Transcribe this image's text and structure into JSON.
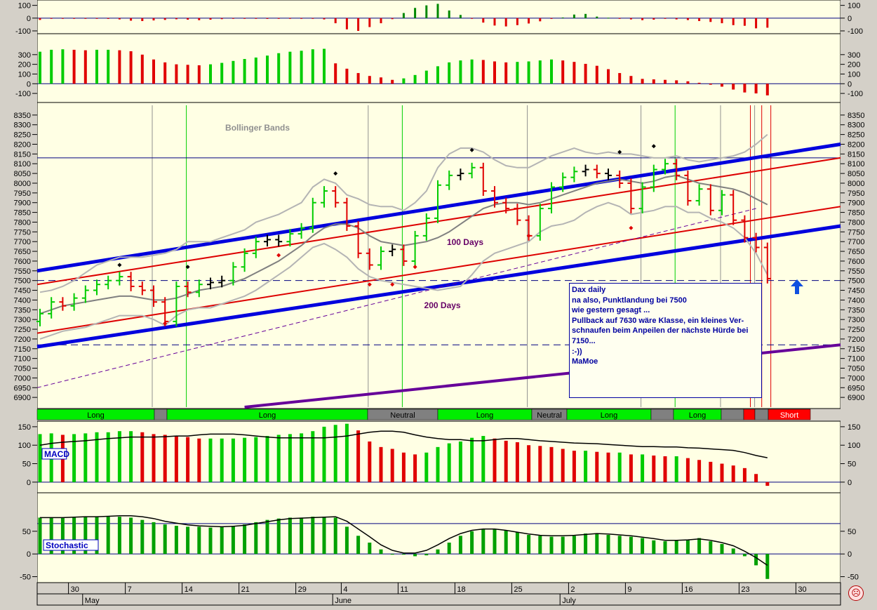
{
  "colors": {
    "background": "#ffffe4",
    "up": "#00cc00",
    "down": "#e00000",
    "neutral_bar": "#000000",
    "trend_blue": "#0000dd",
    "trend_red": "#dd0000",
    "trend_purple": "#660099",
    "bollinger": "#b4b4b4",
    "ma": "#808080",
    "grid": "#000080",
    "annotation": "#0000a0",
    "label_purple": "#660066",
    "long_band": "#00ee00",
    "neutral_band": "#808080",
    "short_band": "#ff0000"
  },
  "chart_data": [
    {
      "type": "bar",
      "name": "top_histogram_1",
      "ylim": [
        -100,
        120
      ],
      "y_ticks": [
        "100",
        "0",
        "-100"
      ],
      "values_by_day": [
        -14,
        -4,
        -4,
        -2,
        -5,
        -3,
        -6,
        -10,
        -20,
        -23,
        -18,
        -14,
        -9,
        -12,
        -16,
        -12,
        -8,
        -5,
        -4,
        -5,
        -6,
        -5,
        -5,
        -4,
        -5,
        -10,
        -40,
        -88,
        -100,
        -70,
        -40,
        -8,
        40,
        80,
        100,
        112,
        60,
        25,
        -5,
        -35,
        -58,
        -65,
        -55,
        -42,
        -25,
        -6,
        5,
        28,
        33,
        12,
        3,
        -3,
        -10,
        -16,
        -12,
        -5,
        -10,
        -15,
        -23,
        -30,
        -40,
        -55,
        -60,
        -80,
        -75
      ]
    },
    {
      "type": "bar",
      "name": "top_histogram_2",
      "ylim": [
        -150,
        400
      ],
      "y_ticks": [
        "300",
        "200",
        "100",
        "0",
        "-100"
      ],
      "values_by_day": [
        330,
        350,
        355,
        350,
        345,
        350,
        350,
        345,
        335,
        300,
        250,
        220,
        200,
        195,
        190,
        200,
        215,
        235,
        255,
        270,
        290,
        315,
        330,
        340,
        355,
        360,
        210,
        155,
        110,
        80,
        65,
        40,
        55,
        90,
        135,
        180,
        220,
        240,
        250,
        245,
        230,
        220,
        225,
        230,
        240,
        250,
        240,
        225,
        205,
        185,
        150,
        110,
        80,
        50,
        45,
        40,
        35,
        25,
        10,
        -10,
        -30,
        -60,
        -90,
        -100,
        -120
      ]
    },
    {
      "type": "line",
      "name": "price_chart",
      "ylim": [
        6850,
        8400
      ],
      "y_ticks": [
        "8350",
        "8300",
        "8250",
        "8200",
        "8150",
        "8100",
        "8050",
        "8000",
        "7950",
        "7900",
        "7850",
        "7800",
        "7750",
        "7700",
        "7650",
        "7600",
        "7550",
        "7500",
        "7450",
        "7400",
        "7350",
        "7300",
        "7250",
        "7200",
        "7150",
        "7100",
        "7050",
        "7000",
        "6950",
        "6900"
      ],
      "close_by_day": [
        7330,
        7390,
        7370,
        7410,
        7450,
        7480,
        7500,
        7520,
        7470,
        7450,
        7390,
        7290,
        7470,
        7440,
        7480,
        7490,
        7500,
        7570,
        7640,
        7700,
        7710,
        7700,
        7740,
        7770,
        7900,
        7960,
        7900,
        7780,
        7640,
        7580,
        7650,
        7660,
        7600,
        7730,
        7820,
        7990,
        8040,
        8050,
        8080,
        7960,
        7900,
        7870,
        7810,
        7730,
        7870,
        7980,
        8030,
        8060,
        8070,
        8050,
        8040,
        8000,
        7870,
        7980,
        8070,
        8100,
        8040,
        7910,
        7970,
        7860,
        7940,
        7810,
        7720,
        7670,
        7510
      ],
      "bollinger_upper_by_day": [
        7440,
        7450,
        7470,
        7500,
        7540,
        7580,
        7600,
        7620,
        7620,
        7620,
        7630,
        7640,
        7660,
        7700,
        7700,
        7700,
        7720,
        7740,
        7760,
        7800,
        7820,
        7840,
        7870,
        7900,
        7980,
        8020,
        8000,
        7940,
        7920,
        7890,
        7880,
        7880,
        7860,
        7900,
        7960,
        8080,
        8150,
        8180,
        8180,
        8160,
        8120,
        8090,
        8080,
        8080,
        8110,
        8140,
        8160,
        8180,
        8160,
        8150,
        8160,
        8150,
        8150,
        8140,
        8130,
        8130,
        8140,
        8120,
        8110,
        8120,
        8130,
        8140,
        8160,
        8200,
        8250
      ],
      "bollinger_lower_by_day": [
        7200,
        7220,
        7240,
        7250,
        7260,
        7280,
        7300,
        7320,
        7320,
        7320,
        7300,
        7270,
        7320,
        7350,
        7360,
        7360,
        7380,
        7400,
        7420,
        7450,
        7490,
        7530,
        7570,
        7620,
        7670,
        7690,
        7660,
        7620,
        7560,
        7520,
        7500,
        7490,
        7480,
        7470,
        7460,
        7450,
        7460,
        7470,
        7530,
        7600,
        7640,
        7660,
        7680,
        7700,
        7750,
        7780,
        7790,
        7810,
        7850,
        7880,
        7900,
        7880,
        7840,
        7850,
        7860,
        7880,
        7880,
        7850,
        7850,
        7820,
        7800,
        7770,
        7720,
        7640,
        7530
      ],
      "ma_by_day": [
        7330,
        7350,
        7370,
        7380,
        7390,
        7400,
        7410,
        7420,
        7420,
        7410,
        7400,
        7400,
        7410,
        7430,
        7450,
        7460,
        7470,
        7490,
        7510,
        7540,
        7570,
        7600,
        7640,
        7680,
        7730,
        7770,
        7790,
        7790,
        7770,
        7730,
        7700,
        7690,
        7680,
        7690,
        7700,
        7720,
        7750,
        7790,
        7830,
        7870,
        7890,
        7900,
        7900,
        7890,
        7900,
        7920,
        7940,
        7960,
        7980,
        8000,
        8010,
        8020,
        8010,
        8000,
        8010,
        8030,
        8040,
        8020,
        8000,
        7990,
        7980,
        7970,
        7950,
        7920,
        7890
      ],
      "labels": {
        "bollinger": "Bollinger Bands",
        "ma100": "100 Days",
        "ma200": "200 Days"
      },
      "reference_levels": [
        8130,
        7500,
        7170
      ],
      "blue_channel": {
        "upper_start": 7550,
        "upper_end": 8200,
        "lower_start": 7160,
        "lower_end": 7780
      },
      "red_channel": {
        "upper_start": 7480,
        "upper_end": 8130,
        "lower_start": 7230,
        "lower_end": 7880
      },
      "purple_line": {
        "start": 6820,
        "end": 7170
      }
    },
    {
      "type": "bar",
      "name": "MACD",
      "ylim": [
        -25,
        165
      ],
      "y_ticks": [
        "150",
        "100",
        "50",
        "0"
      ],
      "values_by_day": [
        130,
        132,
        128,
        130,
        132,
        135,
        135,
        138,
        138,
        135,
        130,
        128,
        125,
        122,
        118,
        118,
        118,
        118,
        120,
        122,
        125,
        128,
        130,
        132,
        138,
        150,
        155,
        158,
        140,
        110,
        95,
        90,
        80,
        75,
        80,
        95,
        105,
        110,
        120,
        125,
        118,
        112,
        108,
        100,
        98,
        95,
        90,
        85,
        85,
        82,
        80,
        80,
        75,
        75,
        72,
        70,
        70,
        65,
        60,
        55,
        50,
        45,
        38,
        22,
        -10
      ],
      "signal_by_day": [
        100,
        105,
        108,
        110,
        112,
        115,
        118,
        120,
        122,
        122,
        122,
        123,
        125,
        125,
        128,
        130,
        130,
        130,
        128,
        125,
        122,
        120,
        120,
        120,
        120,
        120,
        122,
        125,
        130,
        135,
        138,
        138,
        135,
        128,
        122,
        118,
        115,
        115,
        112,
        112,
        115,
        118,
        118,
        115,
        112,
        110,
        108,
        106,
        105,
        104,
        102,
        100,
        98,
        96,
        96,
        95,
        95,
        93,
        92,
        90,
        88,
        86,
        80,
        72,
        66
      ],
      "label": "MACD"
    },
    {
      "type": "bar",
      "name": "Stochastic",
      "ylim": [
        -60,
        110
      ],
      "y_ticks": [
        "50",
        "0",
        "-50"
      ],
      "values_by_day": [
        80,
        80,
        80,
        80,
        82,
        82,
        82,
        82,
        80,
        75,
        70,
        65,
        62,
        60,
        60,
        58,
        60,
        62,
        65,
        70,
        75,
        78,
        80,
        80,
        82,
        82,
        80,
        60,
        40,
        25,
        10,
        0,
        0,
        -5,
        -3,
        10,
        25,
        40,
        50,
        55,
        55,
        52,
        48,
        42,
        40,
        38,
        38,
        40,
        45,
        45,
        42,
        40,
        38,
        35,
        30,
        28,
        30,
        32,
        35,
        28,
        22,
        12,
        -5,
        -25,
        -55
      ],
      "signal_by_day": [
        80,
        80,
        80,
        81,
        82,
        82,
        83,
        84,
        84,
        82,
        78,
        72,
        68,
        64,
        62,
        61,
        60,
        61,
        63,
        67,
        71,
        75,
        78,
        79,
        80,
        81,
        82,
        72,
        55,
        38,
        20,
        8,
        2,
        2,
        8,
        20,
        34,
        45,
        52,
        55,
        55,
        52,
        48,
        44,
        41,
        40,
        40,
        41,
        43,
        45,
        44,
        42,
        40,
        37,
        34,
        30,
        30,
        31,
        33,
        30,
        25,
        18,
        6,
        -8,
        -25
      ],
      "label": "Stochastic"
    }
  ],
  "signal_bands": [
    {
      "label": "Long",
      "kind": "long"
    },
    {
      "label": "",
      "kind": "neutral"
    },
    {
      "label": "Long",
      "kind": "long"
    },
    {
      "label": "Neutral",
      "kind": "neutral"
    },
    {
      "label": "Long",
      "kind": "long"
    },
    {
      "label": "Neutral",
      "kind": "neutral"
    },
    {
      "label": "Long",
      "kind": "long"
    },
    {
      "label": "",
      "kind": "neutral"
    },
    {
      "label": "Long",
      "kind": "long"
    },
    {
      "label": "",
      "kind": "neutral"
    },
    {
      "label": "",
      "kind": "short"
    },
    {
      "label": "",
      "kind": "neutral"
    },
    {
      "label": "Short",
      "kind": "short"
    }
  ],
  "x_axis": {
    "ticks": [
      {
        "label": "30",
        "day": 3
      },
      {
        "label": "7",
        "day": 8
      },
      {
        "label": "14",
        "day": 13
      },
      {
        "label": "21",
        "day": 18
      },
      {
        "label": "29",
        "day": 23
      },
      {
        "label": "4",
        "day": 27
      },
      {
        "label": "11",
        "day": 32
      },
      {
        "label": "18",
        "day": 37
      },
      {
        "label": "25",
        "day": 42
      },
      {
        "label": "2",
        "day": 47
      },
      {
        "label": "9",
        "day": 52
      },
      {
        "label": "16",
        "day": 57
      },
      {
        "label": "23",
        "day": 62
      },
      {
        "label": "30",
        "day": 67
      }
    ],
    "months": [
      {
        "label": "May",
        "day": 4
      },
      {
        "label": "June",
        "day": 26
      },
      {
        "label": "July",
        "day": 46
      }
    ]
  },
  "annotation": {
    "lines": [
      "Dax daily",
      "",
      "na also, Punktlandung bei 7500",
      "wie gestern gesagt ...",
      "Pullback auf 7630 wäre Klasse, ein kleines Ver-",
      "schnaufen beim Anpeilen der nächste Hürde bei",
      "7150...",
      "",
      ":-))",
      "",
      "MaMoe"
    ]
  },
  "status_icon": "sad-smiley-icon"
}
